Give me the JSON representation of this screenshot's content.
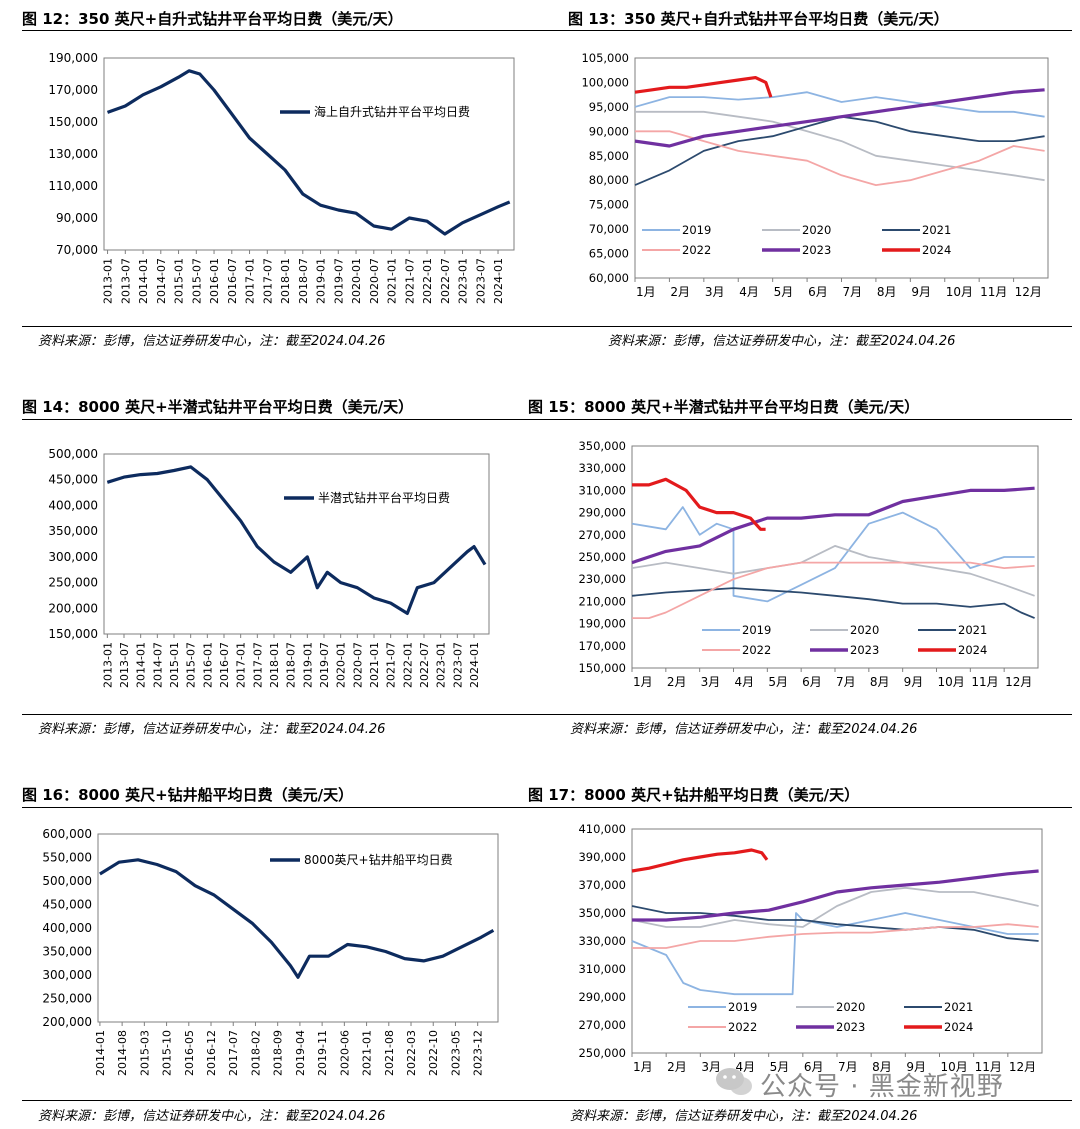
{
  "source_note": "资料来源：彭博，信达证券研发中心，注：截至2024.04.26",
  "watermark": "公众号 · 黑金新视野",
  "colors": {
    "c2019": "#8db4e2",
    "c2020": "#b8bcc4",
    "c2021": "#2c4a6e",
    "c2022": "#f4a6a6",
    "c2023": "#7030a0",
    "c2024": "#e31a1c",
    "navy": "#0d2b5e"
  },
  "chart_data": [
    {
      "id": "fig12",
      "type": "line",
      "title": "图 12：350 英尺+自升式钻井平台平均日费（美元/天）",
      "ylim": [
        70000,
        190000
      ],
      "yticks": [
        70000,
        90000,
        110000,
        130000,
        150000,
        170000,
        190000
      ],
      "xticks": [
        "2013-01",
        "2013-07",
        "2014-01",
        "2014-07",
        "2015-01",
        "2015-07",
        "2016-01",
        "2016-07",
        "2017-01",
        "2017-07",
        "2018-01",
        "2018-07",
        "2019-01",
        "2019-07",
        "2020-01",
        "2020-07",
        "2021-01",
        "2021-07",
        "2022-01",
        "2022-07",
        "2023-01",
        "2023-07",
        "2024-01"
      ],
      "xlabel": "",
      "ylabel": "",
      "legend": "top-right",
      "series": [
        {
          "name": "海上自升式钻井平台平均日费",
          "color": "#0d2b5e",
          "x": [
            2013.0,
            2013.5,
            2014.0,
            2014.5,
            2015.0,
            2015.3,
            2015.6,
            2016.0,
            2016.5,
            2017.0,
            2017.5,
            2018.0,
            2018.5,
            2019.0,
            2019.5,
            2020.0,
            2020.5,
            2021.0,
            2021.5,
            2022.0,
            2022.5,
            2023.0,
            2023.5,
            2024.0,
            2024.33
          ],
          "y": [
            156000,
            160000,
            167000,
            172000,
            178000,
            182000,
            180000,
            170000,
            155000,
            140000,
            130000,
            120000,
            105000,
            98000,
            95000,
            93000,
            85000,
            83000,
            90000,
            88000,
            80000,
            87000,
            92000,
            97000,
            100000
          ]
        }
      ]
    },
    {
      "id": "fig13",
      "type": "line",
      "title": "图 13：350 英尺+自升式钻井平台平均日费（美元/天）",
      "ylim": [
        60000,
        105000
      ],
      "yticks": [
        60000,
        65000,
        70000,
        75000,
        80000,
        85000,
        90000,
        95000,
        100000,
        105000
      ],
      "categories": [
        "1月",
        "2月",
        "3月",
        "4月",
        "5月",
        "6月",
        "7月",
        "8月",
        "9月",
        "10月",
        "11月",
        "12月"
      ],
      "xlabel": "",
      "ylabel": "",
      "legend": "bottom",
      "series": [
        {
          "name": "2019",
          "color": "#8db4e2",
          "x": [
            0,
            1,
            2,
            3,
            4,
            5,
            6,
            7,
            8,
            9,
            10,
            11,
            11.9
          ],
          "y": [
            95000,
            97000,
            97000,
            96500,
            97000,
            98000,
            96000,
            97000,
            96000,
            95000,
            94000,
            94000,
            93000
          ]
        },
        {
          "name": "2020",
          "color": "#b8bcc4",
          "x": [
            0,
            1,
            2,
            3,
            4,
            5,
            6,
            7,
            8,
            9,
            10,
            11,
            11.9
          ],
          "y": [
            94000,
            94000,
            94000,
            93000,
            92000,
            90000,
            88000,
            85000,
            84000,
            83000,
            82000,
            81000,
            80000
          ]
        },
        {
          "name": "2021",
          "color": "#2c4a6e",
          "x": [
            0,
            1,
            2,
            3,
            4,
            5,
            6,
            7,
            8,
            9,
            10,
            11,
            11.9
          ],
          "y": [
            79000,
            82000,
            86000,
            88000,
            89000,
            91000,
            93000,
            92000,
            90000,
            89000,
            88000,
            88000,
            89000
          ]
        },
        {
          "name": "2022",
          "color": "#f4a6a6",
          "x": [
            0,
            1,
            2,
            3,
            4,
            5,
            6,
            7,
            8,
            9,
            10,
            11,
            11.9
          ],
          "y": [
            90000,
            90000,
            88000,
            86000,
            85000,
            84000,
            81000,
            79000,
            80000,
            82000,
            84000,
            87000,
            86000
          ]
        },
        {
          "name": "2023",
          "color": "#7030a0",
          "x": [
            0,
            1,
            2,
            3,
            4,
            5,
            6,
            7,
            8,
            9,
            10,
            11,
            11.9
          ],
          "y": [
            88000,
            87000,
            89000,
            90000,
            91000,
            92000,
            93000,
            94000,
            95000,
            96000,
            97000,
            98000,
            98500
          ]
        },
        {
          "name": "2024",
          "color": "#e31a1c",
          "x": [
            0,
            0.5,
            1,
            1.5,
            2,
            2.5,
            3,
            3.5,
            3.8,
            3.95
          ],
          "y": [
            98000,
            98500,
            99000,
            99000,
            99500,
            100000,
            100500,
            101000,
            100000,
            97000
          ]
        }
      ]
    },
    {
      "id": "fig14",
      "type": "line",
      "title": "图 14：8000 英尺+半潜式钻井平台平均日费（美元/天）",
      "ylim": [
        150000,
        500000
      ],
      "yticks": [
        150000,
        200000,
        250000,
        300000,
        350000,
        400000,
        450000,
        500000
      ],
      "xticks": [
        "2013-01",
        "2013-07",
        "2014-01",
        "2014-07",
        "2015-01",
        "2015-07",
        "2016-01",
        "2016-07",
        "2017-01",
        "2017-07",
        "2018-01",
        "2018-07",
        "2019-01",
        "2019-07",
        "2020-01",
        "2020-07",
        "2021-01",
        "2021-07",
        "2022-01",
        "2022-07",
        "2023-01",
        "2023-07",
        "2024-01"
      ],
      "xlabel": "",
      "ylabel": "",
      "legend": "top-right",
      "series": [
        {
          "name": "半潜式钻井平台平均日费",
          "color": "#0d2b5e",
          "x": [
            2013.0,
            2013.5,
            2014.0,
            2014.5,
            2015.0,
            2015.5,
            2016.0,
            2016.5,
            2017.0,
            2017.5,
            2018.0,
            2018.5,
            2019.0,
            2019.3,
            2019.6,
            2020.0,
            2020.5,
            2021.0,
            2021.5,
            2022.0,
            2022.3,
            2022.8,
            2023.3,
            2023.8,
            2024.0,
            2024.33
          ],
          "y": [
            445000,
            455000,
            460000,
            462000,
            468000,
            475000,
            450000,
            410000,
            370000,
            320000,
            290000,
            270000,
            300000,
            240000,
            270000,
            250000,
            240000,
            220000,
            210000,
            190000,
            240000,
            250000,
            280000,
            310000,
            320000,
            285000
          ]
        }
      ]
    },
    {
      "id": "fig15",
      "type": "line",
      "title": "图 15：8000 英尺+半潜式钻井平台平均日费（美元/天）",
      "ylim": [
        150000,
        350000
      ],
      "yticks": [
        150000,
        170000,
        190000,
        210000,
        230000,
        250000,
        270000,
        290000,
        310000,
        330000,
        350000
      ],
      "categories": [
        "1月",
        "2月",
        "3月",
        "4月",
        "5月",
        "6月",
        "7月",
        "8月",
        "9月",
        "10月",
        "11月",
        "12月"
      ],
      "xlabel": "",
      "ylabel": "",
      "legend": "bottom",
      "series": [
        {
          "name": "2019",
          "color": "#8db4e2",
          "x": [
            0,
            1,
            1.5,
            2,
            2.5,
            3,
            3,
            4,
            5,
            6,
            7,
            8,
            9,
            10,
            11,
            11.9
          ],
          "y": [
            280000,
            275000,
            295000,
            270000,
            280000,
            275000,
            215000,
            210000,
            225000,
            240000,
            280000,
            290000,
            275000,
            240000,
            250000,
            250000
          ]
        },
        {
          "name": "2020",
          "color": "#b8bcc4",
          "x": [
            0,
            1,
            2,
            3,
            4,
            5,
            6,
            7,
            8,
            9,
            10,
            11,
            11.9
          ],
          "y": [
            240000,
            245000,
            240000,
            235000,
            240000,
            245000,
            260000,
            250000,
            245000,
            240000,
            235000,
            225000,
            215000
          ]
        },
        {
          "name": "2021",
          "color": "#2c4a6e",
          "x": [
            0,
            1,
            2,
            3,
            4,
            5,
            6,
            7,
            8,
            9,
            10,
            11,
            11.5,
            11.9
          ],
          "y": [
            215000,
            218000,
            220000,
            222000,
            220000,
            218000,
            215000,
            212000,
            208000,
            208000,
            205000,
            208000,
            200000,
            195000
          ]
        },
        {
          "name": "2022",
          "color": "#f4a6a6",
          "x": [
            0,
            0.5,
            1,
            2,
            3,
            4,
            5,
            6,
            7,
            8,
            9,
            10,
            11,
            11.9
          ],
          "y": [
            195000,
            195000,
            200000,
            215000,
            230000,
            240000,
            245000,
            245000,
            245000,
            245000,
            245000,
            245000,
            240000,
            242000
          ]
        },
        {
          "name": "2023",
          "color": "#7030a0",
          "x": [
            0,
            1,
            2,
            3,
            4,
            5,
            6,
            7,
            8,
            9,
            10,
            11,
            11.9
          ],
          "y": [
            245000,
            255000,
            260000,
            275000,
            285000,
            285000,
            288000,
            288000,
            300000,
            305000,
            310000,
            310000,
            312000
          ]
        },
        {
          "name": "2024",
          "color": "#e31a1c",
          "x": [
            0,
            0.5,
            1,
            1.3,
            1.6,
            2,
            2.5,
            3,
            3.5,
            3.8,
            3.95
          ],
          "y": [
            315000,
            315000,
            320000,
            315000,
            310000,
            295000,
            290000,
            290000,
            285000,
            275000,
            275000
          ]
        }
      ]
    },
    {
      "id": "fig16",
      "type": "line",
      "title": "图 16：8000 英尺+钻井船平均日费（美元/天）",
      "ylim": [
        200000,
        600000
      ],
      "yticks": [
        200000,
        250000,
        300000,
        350000,
        400000,
        450000,
        500000,
        550000,
        600000
      ],
      "xticks": [
        "2014-01",
        "2014-08",
        "2015-03",
        "2015-10",
        "2016-05",
        "2016-12",
        "2017-07",
        "2018-02",
        "2018-09",
        "2019-04",
        "2019-11",
        "2020-06",
        "2021-01",
        "2021-08",
        "2022-03",
        "2022-10",
        "2023-05",
        "2023-12"
      ],
      "xlabel": "",
      "ylabel": "",
      "legend": "top-right",
      "series": [
        {
          "name": "8000英尺+钻井船平均日费",
          "color": "#0d2b5e",
          "x": [
            2014.0,
            2014.5,
            2015.0,
            2015.5,
            2016.0,
            2016.5,
            2017.0,
            2017.5,
            2018.0,
            2018.5,
            2019.0,
            2019.2,
            2019.5,
            2020.0,
            2020.5,
            2021.0,
            2021.5,
            2022.0,
            2022.5,
            2023.0,
            2023.5,
            2024.0,
            2024.33
          ],
          "y": [
            515000,
            540000,
            545000,
            535000,
            520000,
            490000,
            470000,
            440000,
            410000,
            370000,
            320000,
            295000,
            340000,
            340000,
            365000,
            360000,
            350000,
            335000,
            330000,
            340000,
            360000,
            380000,
            395000
          ]
        }
      ]
    },
    {
      "id": "fig17",
      "type": "line",
      "title": "图 17：8000 英尺+钻井船平均日费（美元/天）",
      "ylim": [
        250000,
        410000
      ],
      "yticks": [
        250000,
        270000,
        290000,
        310000,
        330000,
        350000,
        370000,
        390000,
        410000
      ],
      "categories": [
        "1月",
        "2月",
        "3月",
        "4月",
        "5月",
        "6月",
        "7月",
        "8月",
        "9月",
        "10月",
        "11月",
        "12月"
      ],
      "xlabel": "",
      "ylabel": "",
      "legend": "bottom",
      "series": [
        {
          "name": "2019",
          "color": "#8db4e2",
          "x": [
            0,
            1,
            1.5,
            2,
            3,
            4,
            4.7,
            4.8,
            5,
            6,
            7,
            8,
            9,
            10,
            11,
            11.9
          ],
          "y": [
            330000,
            320000,
            300000,
            295000,
            292000,
            292000,
            292000,
            350000,
            345000,
            340000,
            345000,
            350000,
            345000,
            340000,
            335000,
            335000
          ]
        },
        {
          "name": "2020",
          "color": "#b8bcc4",
          "x": [
            0,
            1,
            2,
            3,
            4,
            5,
            6,
            7,
            8,
            9,
            10,
            11,
            11.9
          ],
          "y": [
            345000,
            340000,
            340000,
            345000,
            342000,
            340000,
            355000,
            365000,
            368000,
            365000,
            365000,
            360000,
            355000
          ]
        },
        {
          "name": "2021",
          "color": "#2c4a6e",
          "x": [
            0,
            1,
            2,
            3,
            4,
            5,
            6,
            7,
            8,
            9,
            10,
            11,
            11.9
          ],
          "y": [
            355000,
            350000,
            350000,
            348000,
            345000,
            345000,
            342000,
            340000,
            338000,
            340000,
            338000,
            332000,
            330000
          ]
        },
        {
          "name": "2022",
          "color": "#f4a6a6",
          "x": [
            0,
            1,
            2,
            3,
            4,
            5,
            6,
            7,
            8,
            9,
            10,
            11,
            11.9
          ],
          "y": [
            325000,
            325000,
            330000,
            330000,
            333000,
            335000,
            336000,
            336000,
            338000,
            340000,
            340000,
            342000,
            340000
          ]
        },
        {
          "name": "2023",
          "color": "#7030a0",
          "x": [
            0,
            1,
            2,
            3,
            4,
            5,
            6,
            7,
            8,
            9,
            10,
            11,
            11.9
          ],
          "y": [
            345000,
            345000,
            347000,
            350000,
            352000,
            358000,
            365000,
            368000,
            370000,
            372000,
            375000,
            378000,
            380000
          ]
        },
        {
          "name": "2024",
          "color": "#e31a1c",
          "x": [
            0,
            0.5,
            1,
            1.5,
            2,
            2.5,
            3,
            3.5,
            3.8,
            3.95
          ],
          "y": [
            380000,
            382000,
            385000,
            388000,
            390000,
            392000,
            393000,
            395000,
            393000,
            388000
          ]
        }
      ]
    }
  ]
}
